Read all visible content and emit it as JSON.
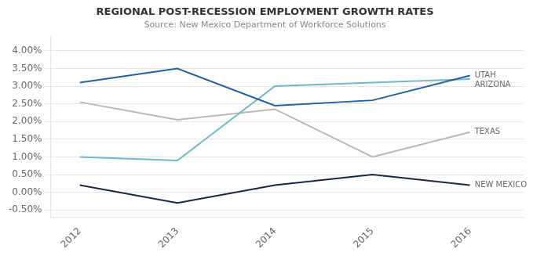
{
  "chart_data": {
    "type": "line",
    "title": "REGIONAL POST-RECESSION EMPLOYMENT GROWTH RATES",
    "subtitle": "Source: New Mexico Department of Workforce Solutions",
    "x": [
      2012,
      2013,
      2014,
      2015,
      2016
    ],
    "series": [
      {
        "name": "UTAH",
        "color": "#2060a0",
        "values": [
          0.031,
          0.035,
          0.0245,
          0.026,
          0.033
        ]
      },
      {
        "name": "ARIZONA",
        "color": "#70b8c8",
        "values": [
          0.01,
          0.009,
          0.03,
          0.031,
          0.032
        ]
      },
      {
        "name": "TEXAS",
        "color": "#b8b8b8",
        "values": [
          0.0255,
          0.0205,
          0.0235,
          0.01,
          0.017
        ]
      },
      {
        "name": "NEW MEXICO",
        "color": "#1a2744",
        "values": [
          0.002,
          -0.003,
          0.002,
          0.005,
          0.002
        ]
      }
    ],
    "xlim": [
      2011.7,
      2016.55
    ],
    "xticks": [
      2012,
      2013,
      2014,
      2015,
      2016
    ],
    "ylim": [
      -0.007,
      0.044
    ],
    "yticks": [
      {
        "value": -0.005,
        "label": "-0.50%"
      },
      {
        "value": 0.0,
        "label": "0.00%"
      },
      {
        "value": 0.005,
        "label": "0.50%"
      },
      {
        "value": 0.01,
        "label": "1.00%"
      },
      {
        "value": 0.015,
        "label": "1.50%"
      },
      {
        "value": 0.02,
        "label": "2.00%"
      },
      {
        "value": 0.025,
        "label": "2.50%"
      },
      {
        "value": 0.03,
        "label": "3.00%"
      },
      {
        "value": 0.035,
        "label": "3.50%"
      },
      {
        "value": 0.04,
        "label": "4.00%"
      }
    ],
    "grid": true
  }
}
